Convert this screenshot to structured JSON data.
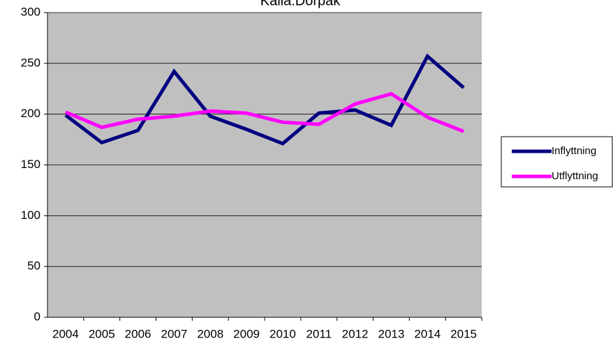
{
  "chart_data": {
    "type": "line",
    "title": "Källa:Dorpak",
    "categories": [
      "2004",
      "2005",
      "2006",
      "2007",
      "2008",
      "2009",
      "2010",
      "2011",
      "2012",
      "2013",
      "2014",
      "2015"
    ],
    "series": [
      {
        "name": "Inflyttning",
        "color": "#000080",
        "values": [
          199,
          172,
          184,
          242,
          198,
          185,
          171,
          201,
          204,
          189,
          257,
          226
        ]
      },
      {
        "name": "Utflyttning",
        "color": "#ff00ff",
        "values": [
          202,
          187,
          195,
          198,
          203,
          201,
          192,
          190,
          210,
          220,
          197,
          183
        ]
      }
    ],
    "ylim": [
      0,
      300
    ],
    "yticks": [
      0,
      50,
      100,
      150,
      200,
      250,
      300
    ],
    "grid": true,
    "legend": "right"
  }
}
